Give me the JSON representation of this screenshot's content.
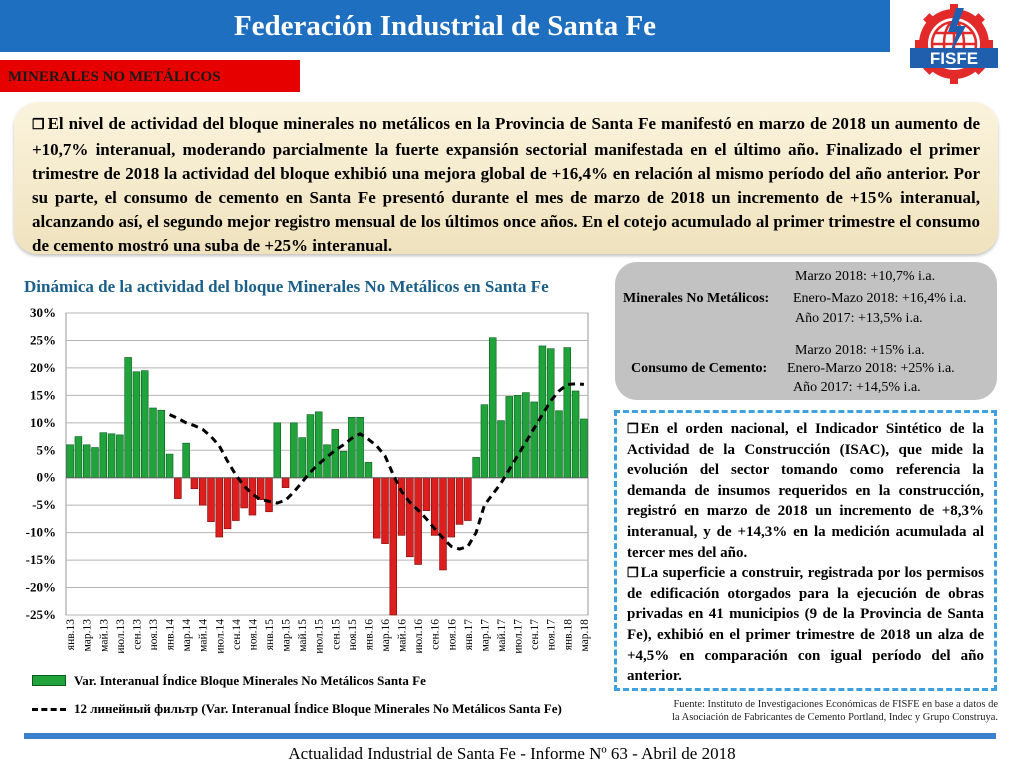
{
  "header": {
    "title": "Federación Industrial de Santa Fe",
    "logo_text": "FISFE",
    "section": "MINERALES NO METÁLICOS"
  },
  "intro": {
    "text": "El nivel de actividad del bloque minerales no metálicos en la Provincia de Santa Fe manifestó en marzo de 2018 un aumento de +10,7% interanual, moderando parcialmente la fuerte expansión sectorial manifestada en el último año. Finalizado el primer trimestre de 2018 la actividad del bloque exhibió una mejora global de +16,4% en relación al mismo período del año anterior. Por su parte, el consumo de cemento en Santa Fe presentó durante el mes de marzo de 2018 un incremento de +15% interanual, alcanzando así, el segundo mejor registro mensual de los últimos once años. En el cotejo acumulado al primer trimestre el consumo de cemento mostró una suba de +25% interanual."
  },
  "chart_data": {
    "type": "bar",
    "title": "Dinámica de la actividad del bloque Minerales No Metálicos en Santa Fe",
    "ylim": [
      -25,
      30
    ],
    "yticks": [
      -25,
      -20,
      -15,
      -10,
      -5,
      0,
      5,
      10,
      15,
      20,
      25,
      30
    ],
    "ytick_labels": [
      "-25%",
      "-20%",
      "-15%",
      "-10%",
      "-5%",
      "0%",
      "5%",
      "10%",
      "15%",
      "20%",
      "25%",
      "30%"
    ],
    "grid": true,
    "legend_placement": "bottom",
    "colors": {
      "positive": "#1fa33a",
      "negative": "#dd1e1e",
      "trend": "#000000"
    },
    "x_tick_labels": [
      "янв.13",
      "мар.13",
      "май.13",
      "июл.13",
      "сен.13",
      "ноя.13",
      "янв.14",
      "мар.14",
      "май.14",
      "июл.14",
      "сен.14",
      "ноя.14",
      "янв.15",
      "мар.15",
      "май.15",
      "июл.15",
      "сен.15",
      "ноя.15",
      "янв.16",
      "мар.16",
      "май.16",
      "июл.16",
      "сен.16",
      "ноя.16",
      "янв.17",
      "мар.17",
      "май.17",
      "июл.17",
      "сен.17",
      "ноя.17",
      "янв.18",
      "мар.18"
    ],
    "series": [
      {
        "name": "Var. Interanual Índice Bloque Minerales No Metálicos Santa Fe",
        "kind": "bar",
        "values": [
          6.0,
          7.5,
          6.0,
          5.5,
          8.2,
          8.0,
          7.8,
          21.9,
          19.3,
          19.5,
          12.7,
          12.3,
          4.3,
          -3.8,
          6.3,
          -2.0,
          -5.0,
          -8.0,
          -10.8,
          -9.3,
          -7.8,
          -5.5,
          -6.8,
          -4.0,
          -6.2,
          10.0,
          -1.8,
          10.0,
          7.3,
          11.5,
          12.0,
          6.0,
          8.8,
          4.8,
          11.0,
          11.0,
          2.8,
          -11.0,
          -12.0,
          -25.0,
          -10.5,
          -14.4,
          -15.8,
          -6.0,
          -10.5,
          -16.8,
          -10.8,
          -8.5,
          -7.8,
          3.7,
          13.3,
          25.5,
          10.4,
          14.8,
          15.0,
          15.5,
          13.8,
          24.0,
          23.5,
          12.2,
          23.7,
          15.8,
          10.7
        ]
      },
      {
        "name": "12 линейный фильтр (Var. Interanual Índice Bloque Minerales No Metálicos Santa Fe)",
        "kind": "line",
        "values": [
          null,
          null,
          null,
          null,
          null,
          null,
          null,
          null,
          null,
          null,
          null,
          null,
          11.5,
          10.8,
          10.0,
          9.5,
          8.8,
          7.5,
          5.8,
          3.0,
          0.5,
          -1.5,
          -3.0,
          -4.0,
          -4.3,
          -4.6,
          -4.1,
          -2.6,
          -0.8,
          1.0,
          2.5,
          3.8,
          5.0,
          6.0,
          7.2,
          8.0,
          7.0,
          5.8,
          4.0,
          0.5,
          -2.5,
          -4.5,
          -5.9,
          -7.5,
          -9.3,
          -11.0,
          -12.5,
          -13.0,
          -12.5,
          -10.0,
          -5.0,
          -3.0,
          -1.0,
          1.5,
          4.0,
          6.5,
          9.0,
          11.5,
          14.0,
          15.8,
          17.0,
          17.1,
          17.0
        ]
      }
    ]
  },
  "summary": {
    "minerales_label": "Minerales No Metálicos:",
    "minerales_lines": [
      "Marzo 2018: +10,7% i.a.",
      "Enero-Mazo 2018: +16,4% i.a.",
      "Año 2017: +13,5% i.a."
    ],
    "cemento_label": "Consumo de Cemento:",
    "cemento_lines": [
      "Marzo 2018: +15% i.a.",
      "Enero-Marzo 2018: +25% i.a.",
      "Año 2017: +14,5% i.a."
    ]
  },
  "national": {
    "p1": "En el orden nacional, el Indicador Sintético de la Actividad de la Construcción (ISAC), que mide la evolución del sector tomando como referencia la demanda de insumos requeridos en la construcción, registró en marzo de 2018 un incremento de +8,3% interanual, y de +14,3% en la medición acumulada al tercer mes del año.",
    "p2": "La superficie a construir, registrada por los permisos de edificación otorgados para la ejecución de obras privadas en 41 municipios (9 de la Provincia de Santa Fe), exhibió en el primer trimestre de 2018 un alza de +4,5% en comparación con igual período del año anterior."
  },
  "source": {
    "line1": "Fuente: Instituto de Investigaciones Económicas de FISFE en base a datos de",
    "line2": "la Asociación de Fabricantes de Cemento Portland, Indec y Grupo Construya."
  },
  "footer": "Actualidad Industrial de Santa Fe - Informe Nº 63 - Abril de 2018"
}
